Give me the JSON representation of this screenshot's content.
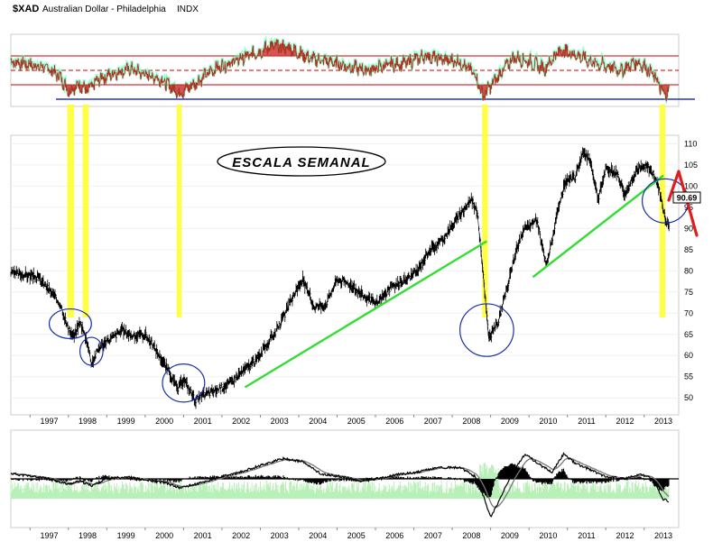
{
  "header": {
    "symbol": "$XAD",
    "description": "Australian Dollar - Philadelphia",
    "exchange": "INDX"
  },
  "annotation": {
    "label": "ESCALA SEMANAL"
  },
  "last_value_label": "90.69",
  "colors": {
    "price": "#000000",
    "trendline": "#33dd33",
    "highlight": "#ffff33",
    "circle": "#1a2fa8",
    "arrow": "#e21c1c",
    "rsi_line": "#b03020",
    "rsi_fill": "#cc2a2a",
    "rsi_glow": "#55ffbb",
    "rsi_band": "#cc0000",
    "rsi_floor": "#2233cc",
    "histogram": "#000000",
    "volume": "#b8f0b8",
    "macd": "#000000",
    "signal": "#777777"
  },
  "chart_data": [
    {
      "type": "line",
      "panel": "rsi",
      "title": "",
      "x_range": [
        1996.5,
        2013.9
      ],
      "y_range": [
        0,
        100
      ],
      "band_levels": [
        70,
        50,
        30
      ],
      "floor_level": 10,
      "points": [
        [
          1996.5,
          62
        ],
        [
          1997.0,
          58
        ],
        [
          1997.5,
          52
        ],
        [
          1997.8,
          40
        ],
        [
          1998.0,
          22
        ],
        [
          1998.3,
          30
        ],
        [
          1998.5,
          21
        ],
        [
          1998.8,
          38
        ],
        [
          1999.2,
          46
        ],
        [
          1999.6,
          52
        ],
        [
          2000.0,
          44
        ],
        [
          2000.4,
          38
        ],
        [
          2000.9,
          18
        ],
        [
          2001.3,
          32
        ],
        [
          2001.8,
          52
        ],
        [
          2002.3,
          62
        ],
        [
          2002.8,
          72
        ],
        [
          2003.3,
          84
        ],
        [
          2003.8,
          80
        ],
        [
          2004.3,
          66
        ],
        [
          2004.8,
          62
        ],
        [
          2005.3,
          55
        ],
        [
          2005.8,
          50
        ],
        [
          2006.3,
          57
        ],
        [
          2006.8,
          60
        ],
        [
          2007.3,
          70
        ],
        [
          2007.8,
          64
        ],
        [
          2008.2,
          62
        ],
        [
          2008.6,
          44
        ],
        [
          2008.8,
          14
        ],
        [
          2009.2,
          42
        ],
        [
          2009.6,
          68
        ],
        [
          2010.0,
          62
        ],
        [
          2010.4,
          52
        ],
        [
          2010.8,
          78
        ],
        [
          2011.2,
          72
        ],
        [
          2011.6,
          62
        ],
        [
          2012.0,
          56
        ],
        [
          2012.4,
          50
        ],
        [
          2012.8,
          62
        ],
        [
          2013.0,
          56
        ],
        [
          2013.3,
          40
        ],
        [
          2013.5,
          16
        ],
        [
          2013.65,
          20
        ]
      ]
    },
    {
      "type": "line",
      "panel": "price",
      "title": "",
      "x_range": [
        1996.5,
        2013.9
      ],
      "y_range": [
        46,
        112
      ],
      "yticks": [
        110,
        105,
        100,
        95,
        90,
        85,
        80,
        75,
        70,
        65,
        60,
        55,
        50
      ],
      "series": [
        {
          "values": [
            [
              1996.5,
              79.5
            ],
            [
              1996.9,
              79.0
            ],
            [
              1997.2,
              78.5
            ],
            [
              1997.5,
              75.5
            ],
            [
              1997.8,
              72.0
            ],
            [
              1998.0,
              66.0
            ],
            [
              1998.15,
              64.5
            ],
            [
              1998.3,
              68.0
            ],
            [
              1998.5,
              63.0
            ],
            [
              1998.6,
              58.0
            ],
            [
              1998.8,
              62.0
            ],
            [
              1999.1,
              64.0
            ],
            [
              1999.4,
              66.0
            ],
            [
              1999.7,
              64.5
            ],
            [
              2000.0,
              65.0
            ],
            [
              2000.3,
              61.0
            ],
            [
              2000.6,
              56.5
            ],
            [
              2000.85,
              52.0
            ],
            [
              2001.0,
              54.5
            ],
            [
              2001.3,
              49.5
            ],
            [
              2001.6,
              51.0
            ],
            [
              2001.9,
              52.0
            ],
            [
              2002.2,
              53.5
            ],
            [
              2002.5,
              56.0
            ],
            [
              2002.9,
              59.0
            ],
            [
              2003.2,
              63.0
            ],
            [
              2003.5,
              67.0
            ],
            [
              2003.8,
              73.0
            ],
            [
              2004.1,
              78.0
            ],
            [
              2004.4,
              71.5
            ],
            [
              2004.7,
              72.0
            ],
            [
              2005.0,
              78.0
            ],
            [
              2005.3,
              77.0
            ],
            [
              2005.7,
              74.0
            ],
            [
              2006.0,
              72.0
            ],
            [
              2006.4,
              76.0
            ],
            [
              2006.8,
              78.0
            ],
            [
              2007.1,
              80.0
            ],
            [
              2007.4,
              85.0
            ],
            [
              2007.6,
              86.0
            ],
            [
              2007.8,
              88.0
            ],
            [
              2008.1,
              92.0
            ],
            [
              2008.5,
              97.0
            ],
            [
              2008.65,
              94.0
            ],
            [
              2008.8,
              80.0
            ],
            [
              2008.95,
              64.0
            ],
            [
              2009.2,
              68.0
            ],
            [
              2009.4,
              75.0
            ],
            [
              2009.7,
              86.0
            ],
            [
              2009.9,
              90.0
            ],
            [
              2010.2,
              92.0
            ],
            [
              2010.45,
              81.0
            ],
            [
              2010.8,
              96.0
            ],
            [
              2010.95,
              101.0
            ],
            [
              2011.2,
              102.0
            ],
            [
              2011.4,
              108.0
            ],
            [
              2011.6,
              106.0
            ],
            [
              2011.8,
              97.0
            ],
            [
              2012.0,
              104.0
            ],
            [
              2012.3,
              103.0
            ],
            [
              2012.5,
              98.0
            ],
            [
              2012.8,
              104.0
            ],
            [
              2013.1,
              104.5
            ],
            [
              2013.3,
              102.0
            ],
            [
              2013.45,
              97.0
            ],
            [
              2013.55,
              92.0
            ],
            [
              2013.65,
              90.69
            ]
          ]
        }
      ],
      "trendlines": [
        [
          [
            2002.6,
            52.5
          ],
          [
            2008.9,
            87.0
          ]
        ],
        [
          [
            2010.1,
            78.5
          ],
          [
            2013.5,
            102.5
          ]
        ]
      ],
      "highlight_bands": [
        [
          1997.97,
          1998.15
        ],
        [
          1998.37,
          1998.53
        ],
        [
          2000.82,
          2000.95
        ],
        [
          2008.78,
          2008.93
        ],
        [
          2013.4,
          2013.55
        ]
      ],
      "circles": [
        [
          1998.05,
          67.5,
          0.55,
          3.5
        ],
        [
          1998.6,
          61.0,
          0.3,
          3.3
        ],
        [
          2001.0,
          53.5,
          0.55,
          4.5
        ],
        [
          2008.9,
          66.0,
          0.7,
          6.2
        ],
        [
          2013.55,
          96.5,
          0.6,
          5.2
        ]
      ],
      "last_value": 90.69
    },
    {
      "type": "line",
      "panel": "macd",
      "title": "",
      "x_range": [
        1996.5,
        2013.9
      ],
      "y_range": [
        -1,
        1
      ],
      "xticks": [
        "1997",
        "1998",
        "1999",
        "2000",
        "2001",
        "2002",
        "2003",
        "2004",
        "2005",
        "2006",
        "2007",
        "2008",
        "2009",
        "2010",
        "2011",
        "2012",
        "2013"
      ],
      "points": [
        [
          1996.5,
          0.12
        ],
        [
          1997.0,
          0.06
        ],
        [
          1997.5,
          0.0
        ],
        [
          1998.0,
          -0.12
        ],
        [
          1998.3,
          -0.05
        ],
        [
          1998.6,
          -0.15
        ],
        [
          1999.0,
          0.0
        ],
        [
          1999.5,
          0.05
        ],
        [
          2000.0,
          -0.03
        ],
        [
          2000.5,
          -0.08
        ],
        [
          2000.9,
          -0.2
        ],
        [
          2001.4,
          -0.1
        ],
        [
          2002.0,
          0.05
        ],
        [
          2002.5,
          0.15
        ],
        [
          2003.0,
          0.3
        ],
        [
          2003.6,
          0.45
        ],
        [
          2004.1,
          0.38
        ],
        [
          2004.6,
          0.1
        ],
        [
          2005.1,
          0.05
        ],
        [
          2005.6,
          -0.05
        ],
        [
          2006.1,
          0.0
        ],
        [
          2006.6,
          0.1
        ],
        [
          2007.1,
          0.15
        ],
        [
          2007.6,
          0.25
        ],
        [
          2008.2,
          0.25
        ],
        [
          2008.6,
          0.05
        ],
        [
          2008.8,
          -0.35
        ],
        [
          2009.0,
          -0.85
        ],
        [
          2009.3,
          -0.35
        ],
        [
          2009.6,
          0.2
        ],
        [
          2009.9,
          0.55
        ],
        [
          2010.3,
          0.3
        ],
        [
          2010.6,
          0.15
        ],
        [
          2010.9,
          0.55
        ],
        [
          2011.2,
          0.35
        ],
        [
          2011.6,
          0.2
        ],
        [
          2012.0,
          0.05
        ],
        [
          2012.5,
          0.0
        ],
        [
          2012.9,
          0.1
        ],
        [
          2013.2,
          0.0
        ],
        [
          2013.5,
          -0.45
        ],
        [
          2013.65,
          -0.5
        ]
      ]
    }
  ]
}
